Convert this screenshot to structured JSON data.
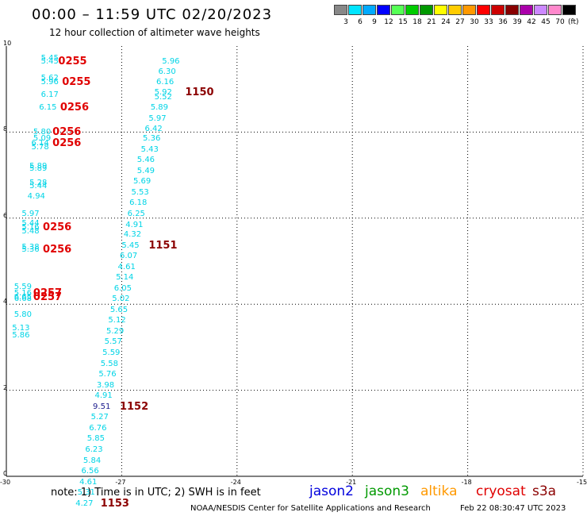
{
  "title": "00:00 – 11:59 UTC 02/20/2023",
  "subtitle": "12 hour collection of altimeter wave heights",
  "legend": {
    "units": "(ft)",
    "items": [
      {
        "label": "3",
        "color": "#888888"
      },
      {
        "label": "6",
        "color": "#00e5ff"
      },
      {
        "label": "9",
        "color": "#00aaff"
      },
      {
        "label": "12",
        "color": "#0000ff"
      },
      {
        "label": "15",
        "color": "#55ff55"
      },
      {
        "label": "18",
        "color": "#00cc00"
      },
      {
        "label": "21",
        "color": "#009900"
      },
      {
        "label": "24",
        "color": "#ffff00"
      },
      {
        "label": "27",
        "color": "#ffcc00"
      },
      {
        "label": "30",
        "color": "#ff9900"
      },
      {
        "label": "33",
        "color": "#ff0000"
      },
      {
        "label": "36",
        "color": "#cc0000"
      },
      {
        "label": "39",
        "color": "#880000"
      },
      {
        "label": "42",
        "color": "#aa00aa"
      },
      {
        "label": "45",
        "color": "#cc88ff"
      },
      {
        "label": "70",
        "color": "#ff88cc"
      },
      {
        "label": "",
        "color": "#000000"
      }
    ]
  },
  "map": {
    "lon_ticks": [
      "-30",
      "-27",
      "-24",
      "-21",
      "-18",
      "-15"
    ],
    "lat_ticks": [
      "0",
      "2",
      "4",
      "6",
      "8",
      "10"
    ],
    "lon_range": [
      -30,
      -15
    ],
    "lat_range": [
      0,
      10
    ]
  },
  "observations": [
    {
      "t": "5.45",
      "lon": -29.1,
      "lat": 9.82
    },
    {
      "t": "5.45",
      "lon": -29.1,
      "lat": 9.75
    },
    {
      "t": "5.62",
      "lon": -29.1,
      "lat": 9.36
    },
    {
      "t": "5.96",
      "lon": -29.1,
      "lat": 9.27
    },
    {
      "t": "6.17",
      "lon": -29.1,
      "lat": 8.97
    },
    {
      "t": "6.15",
      "lon": -29.15,
      "lat": 8.67
    },
    {
      "t": "5.80",
      "lon": -29.3,
      "lat": 8.1
    },
    {
      "t": "5.09",
      "lon": -29.3,
      "lat": 7.95
    },
    {
      "t": "6.14",
      "lon": -29.35,
      "lat": 7.85
    },
    {
      "t": "5.78",
      "lon": -29.35,
      "lat": 7.75
    },
    {
      "t": "5.89",
      "lon": -29.4,
      "lat": 7.3
    },
    {
      "t": "5.89",
      "lon": -29.4,
      "lat": 7.25
    },
    {
      "t": "5.28",
      "lon": -29.4,
      "lat": 6.92
    },
    {
      "t": "5.44",
      "lon": -29.4,
      "lat": 6.85
    },
    {
      "t": "4.94",
      "lon": -29.45,
      "lat": 6.6
    },
    {
      "t": "5.97",
      "lon": -29.6,
      "lat": 6.2
    },
    {
      "t": "5.44",
      "lon": -29.6,
      "lat": 5.97
    },
    {
      "t": "5.16",
      "lon": -29.6,
      "lat": 5.88
    },
    {
      "t": "5.48",
      "lon": -29.6,
      "lat": 5.8
    },
    {
      "t": "5.38",
      "lon": -29.6,
      "lat": 5.43
    },
    {
      "t": "5.36",
      "lon": -29.6,
      "lat": 5.37
    },
    {
      "t": "5.59",
      "lon": -29.8,
      "lat": 4.5
    },
    {
      "t": "5.16",
      "lon": -29.8,
      "lat": 4.35
    },
    {
      "t": "6.65",
      "lon": -29.8,
      "lat": 4.27
    },
    {
      "t": "6.68",
      "lon": -29.8,
      "lat": 4.22
    },
    {
      "t": "5.80",
      "lon": -29.8,
      "lat": 3.85
    },
    {
      "t": "5.13",
      "lon": -29.85,
      "lat": 3.55
    },
    {
      "t": "5.86",
      "lon": -29.85,
      "lat": 3.37
    },
    {
      "t": "5.96",
      "lon": -25.95,
      "lat": 9.75
    },
    {
      "t": "6.30",
      "lon": -26.05,
      "lat": 9.5
    },
    {
      "t": "6.16",
      "lon": -26.1,
      "lat": 9.27
    },
    {
      "t": "5.92",
      "lon": -26.15,
      "lat": 9.02
    },
    {
      "t": "5.52",
      "lon": -26.15,
      "lat": 8.92
    },
    {
      "t": "5.89",
      "lon": -26.25,
      "lat": 8.67
    },
    {
      "t": "5.97",
      "lon": -26.3,
      "lat": 8.42
    },
    {
      "t": "6.42",
      "lon": -26.4,
      "lat": 8.17
    },
    {
      "t": "5.36",
      "lon": -26.45,
      "lat": 7.95
    },
    {
      "t": "5.43",
      "lon": -26.5,
      "lat": 7.7
    },
    {
      "t": "5.46",
      "lon": -26.6,
      "lat": 7.45
    },
    {
      "t": "5.49",
      "lon": -26.6,
      "lat": 7.2
    },
    {
      "t": "5.69",
      "lon": -26.7,
      "lat": 6.95
    },
    {
      "t": "5.53",
      "lon": -26.75,
      "lat": 6.7
    },
    {
      "t": "6.18",
      "lon": -26.8,
      "lat": 6.45
    },
    {
      "t": "6.25",
      "lon": -26.85,
      "lat": 6.2
    },
    {
      "t": "4.91",
      "lon": -26.9,
      "lat": 5.95
    },
    {
      "t": "4.32",
      "lon": -26.95,
      "lat": 5.72
    },
    {
      "t": "5.45",
      "lon": -27.0,
      "lat": 5.47
    },
    {
      "t": "6.07",
      "lon": -27.05,
      "lat": 5.22
    },
    {
      "t": "4.61",
      "lon": -27.1,
      "lat": 4.97
    },
    {
      "t": "5.14",
      "lon": -27.15,
      "lat": 4.72
    },
    {
      "t": "6.05",
      "lon": -27.2,
      "lat": 4.47
    },
    {
      "t": "5.02",
      "lon": -27.25,
      "lat": 4.22
    },
    {
      "t": "5.65",
      "lon": -27.3,
      "lat": 3.97
    },
    {
      "t": "5.12",
      "lon": -27.35,
      "lat": 3.72
    },
    {
      "t": "5.29",
      "lon": -27.4,
      "lat": 3.47
    },
    {
      "t": "5.57",
      "lon": -27.45,
      "lat": 3.22
    },
    {
      "t": "5.59",
      "lon": -27.5,
      "lat": 2.97
    },
    {
      "t": "5.58",
      "lon": -27.55,
      "lat": 2.72
    },
    {
      "t": "5.76",
      "lon": -27.6,
      "lat": 2.47
    },
    {
      "t": "3.98",
      "lon": -27.65,
      "lat": 2.22
    },
    {
      "t": "4.91",
      "lon": -27.7,
      "lat": 1.97
    },
    {
      "t": "9.51",
      "lon": -27.75,
      "lat": 1.72,
      "dark": true
    },
    {
      "t": "5.27",
      "lon": -27.8,
      "lat": 1.47
    },
    {
      "t": "6.76",
      "lon": -27.85,
      "lat": 1.22
    },
    {
      "t": "5.85",
      "lon": -27.9,
      "lat": 0.97
    },
    {
      "t": "6.23",
      "lon": -27.95,
      "lat": 0.72
    },
    {
      "t": "5.84",
      "lon": -28.0,
      "lat": 0.47
    },
    {
      "t": "6.56",
      "lon": -28.05,
      "lat": 0.22
    },
    {
      "t": "4.61",
      "lon": -28.1,
      "lat": -0.03
    },
    {
      "t": "5.31",
      "lon": -28.15,
      "lat": -0.28
    },
    {
      "t": "4.27",
      "lon": -28.2,
      "lat": -0.53
    }
  ],
  "passes": [
    {
      "t": "0255",
      "lon": -28.65,
      "lat": 9.75,
      "color": "red"
    },
    {
      "t": "0255",
      "lon": -28.55,
      "lat": 9.27,
      "color": "red"
    },
    {
      "t": "0256",
      "lon": -28.6,
      "lat": 8.67,
      "color": "red"
    },
    {
      "t": "0256",
      "lon": -28.8,
      "lat": 8.1,
      "color": "red"
    },
    {
      "t": "0256",
      "lon": -28.8,
      "lat": 7.85,
      "color": "red"
    },
    {
      "t": "0256",
      "lon": -29.05,
      "lat": 5.88,
      "color": "red"
    },
    {
      "t": "0256",
      "lon": -29.05,
      "lat": 5.37,
      "color": "red"
    },
    {
      "t": "0257",
      "lon": -29.3,
      "lat": 4.35,
      "color": "red"
    },
    {
      "t": "0257",
      "lon": -29.3,
      "lat": 4.27,
      "color": "red"
    },
    {
      "t": "1150",
      "lon": -25.35,
      "lat": 9.02,
      "color": "maroon"
    },
    {
      "t": "1151",
      "lon": -26.3,
      "lat": 5.47,
      "color": "maroon"
    },
    {
      "t": "1152",
      "lon": -27.05,
      "lat": 1.72,
      "color": "maroon"
    },
    {
      "t": "1153",
      "lon": -27.55,
      "lat": -0.53,
      "color": "maroon"
    }
  ],
  "footer": {
    "note": "note:  1) Time is in UTC; 2) SWH is in feet",
    "satellites": [
      {
        "name": "jason2",
        "color": "#0000dd"
      },
      {
        "name": "jason3",
        "color": "#009900"
      },
      {
        "name": "altika",
        "color": "#ff9900"
      },
      {
        "name": "cryosat",
        "color": "#e00000"
      },
      {
        "name": "s3a",
        "color": "#8b0000"
      }
    ],
    "credit": "NOAA/NESDIS Center for Satellite Applications and Research",
    "timestamp": "Feb 22 08:30:47 UTC 2023"
  }
}
